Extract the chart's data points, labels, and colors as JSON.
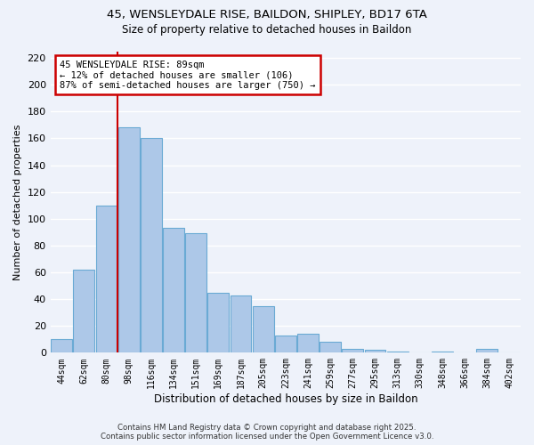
{
  "title1": "45, WENSLEYDALE RISE, BAILDON, SHIPLEY, BD17 6TA",
  "title2": "Size of property relative to detached houses in Baildon",
  "xlabel": "Distribution of detached houses by size in Baildon",
  "ylabel": "Number of detached properties",
  "categories": [
    "44sqm",
    "62sqm",
    "80sqm",
    "98sqm",
    "116sqm",
    "134sqm",
    "151sqm",
    "169sqm",
    "187sqm",
    "205sqm",
    "223sqm",
    "241sqm",
    "259sqm",
    "277sqm",
    "295sqm",
    "313sqm",
    "330sqm",
    "348sqm",
    "366sqm",
    "384sqm",
    "402sqm"
  ],
  "values": [
    10,
    62,
    110,
    168,
    160,
    93,
    89,
    45,
    43,
    35,
    13,
    14,
    8,
    3,
    2,
    1,
    0,
    1,
    0,
    3,
    0
  ],
  "bar_color": "#adc8e8",
  "bar_edge_color": "#6aaad4",
  "ylim": [
    0,
    225
  ],
  "yticks": [
    0,
    20,
    40,
    60,
    80,
    100,
    120,
    140,
    160,
    180,
    200,
    220
  ],
  "vline_color": "#cc0000",
  "annotation_title": "45 WENSLEYDALE RISE: 89sqm",
  "annotation_line1": "← 12% of detached houses are smaller (106)",
  "annotation_line2": "87% of semi-detached houses are larger (750) →",
  "annotation_box_edgecolor": "#cc0000",
  "footer1": "Contains HM Land Registry data © Crown copyright and database right 2025.",
  "footer2": "Contains public sector information licensed under the Open Government Licence v3.0.",
  "background_color": "#eef2fa",
  "grid_color": "#ffffff"
}
